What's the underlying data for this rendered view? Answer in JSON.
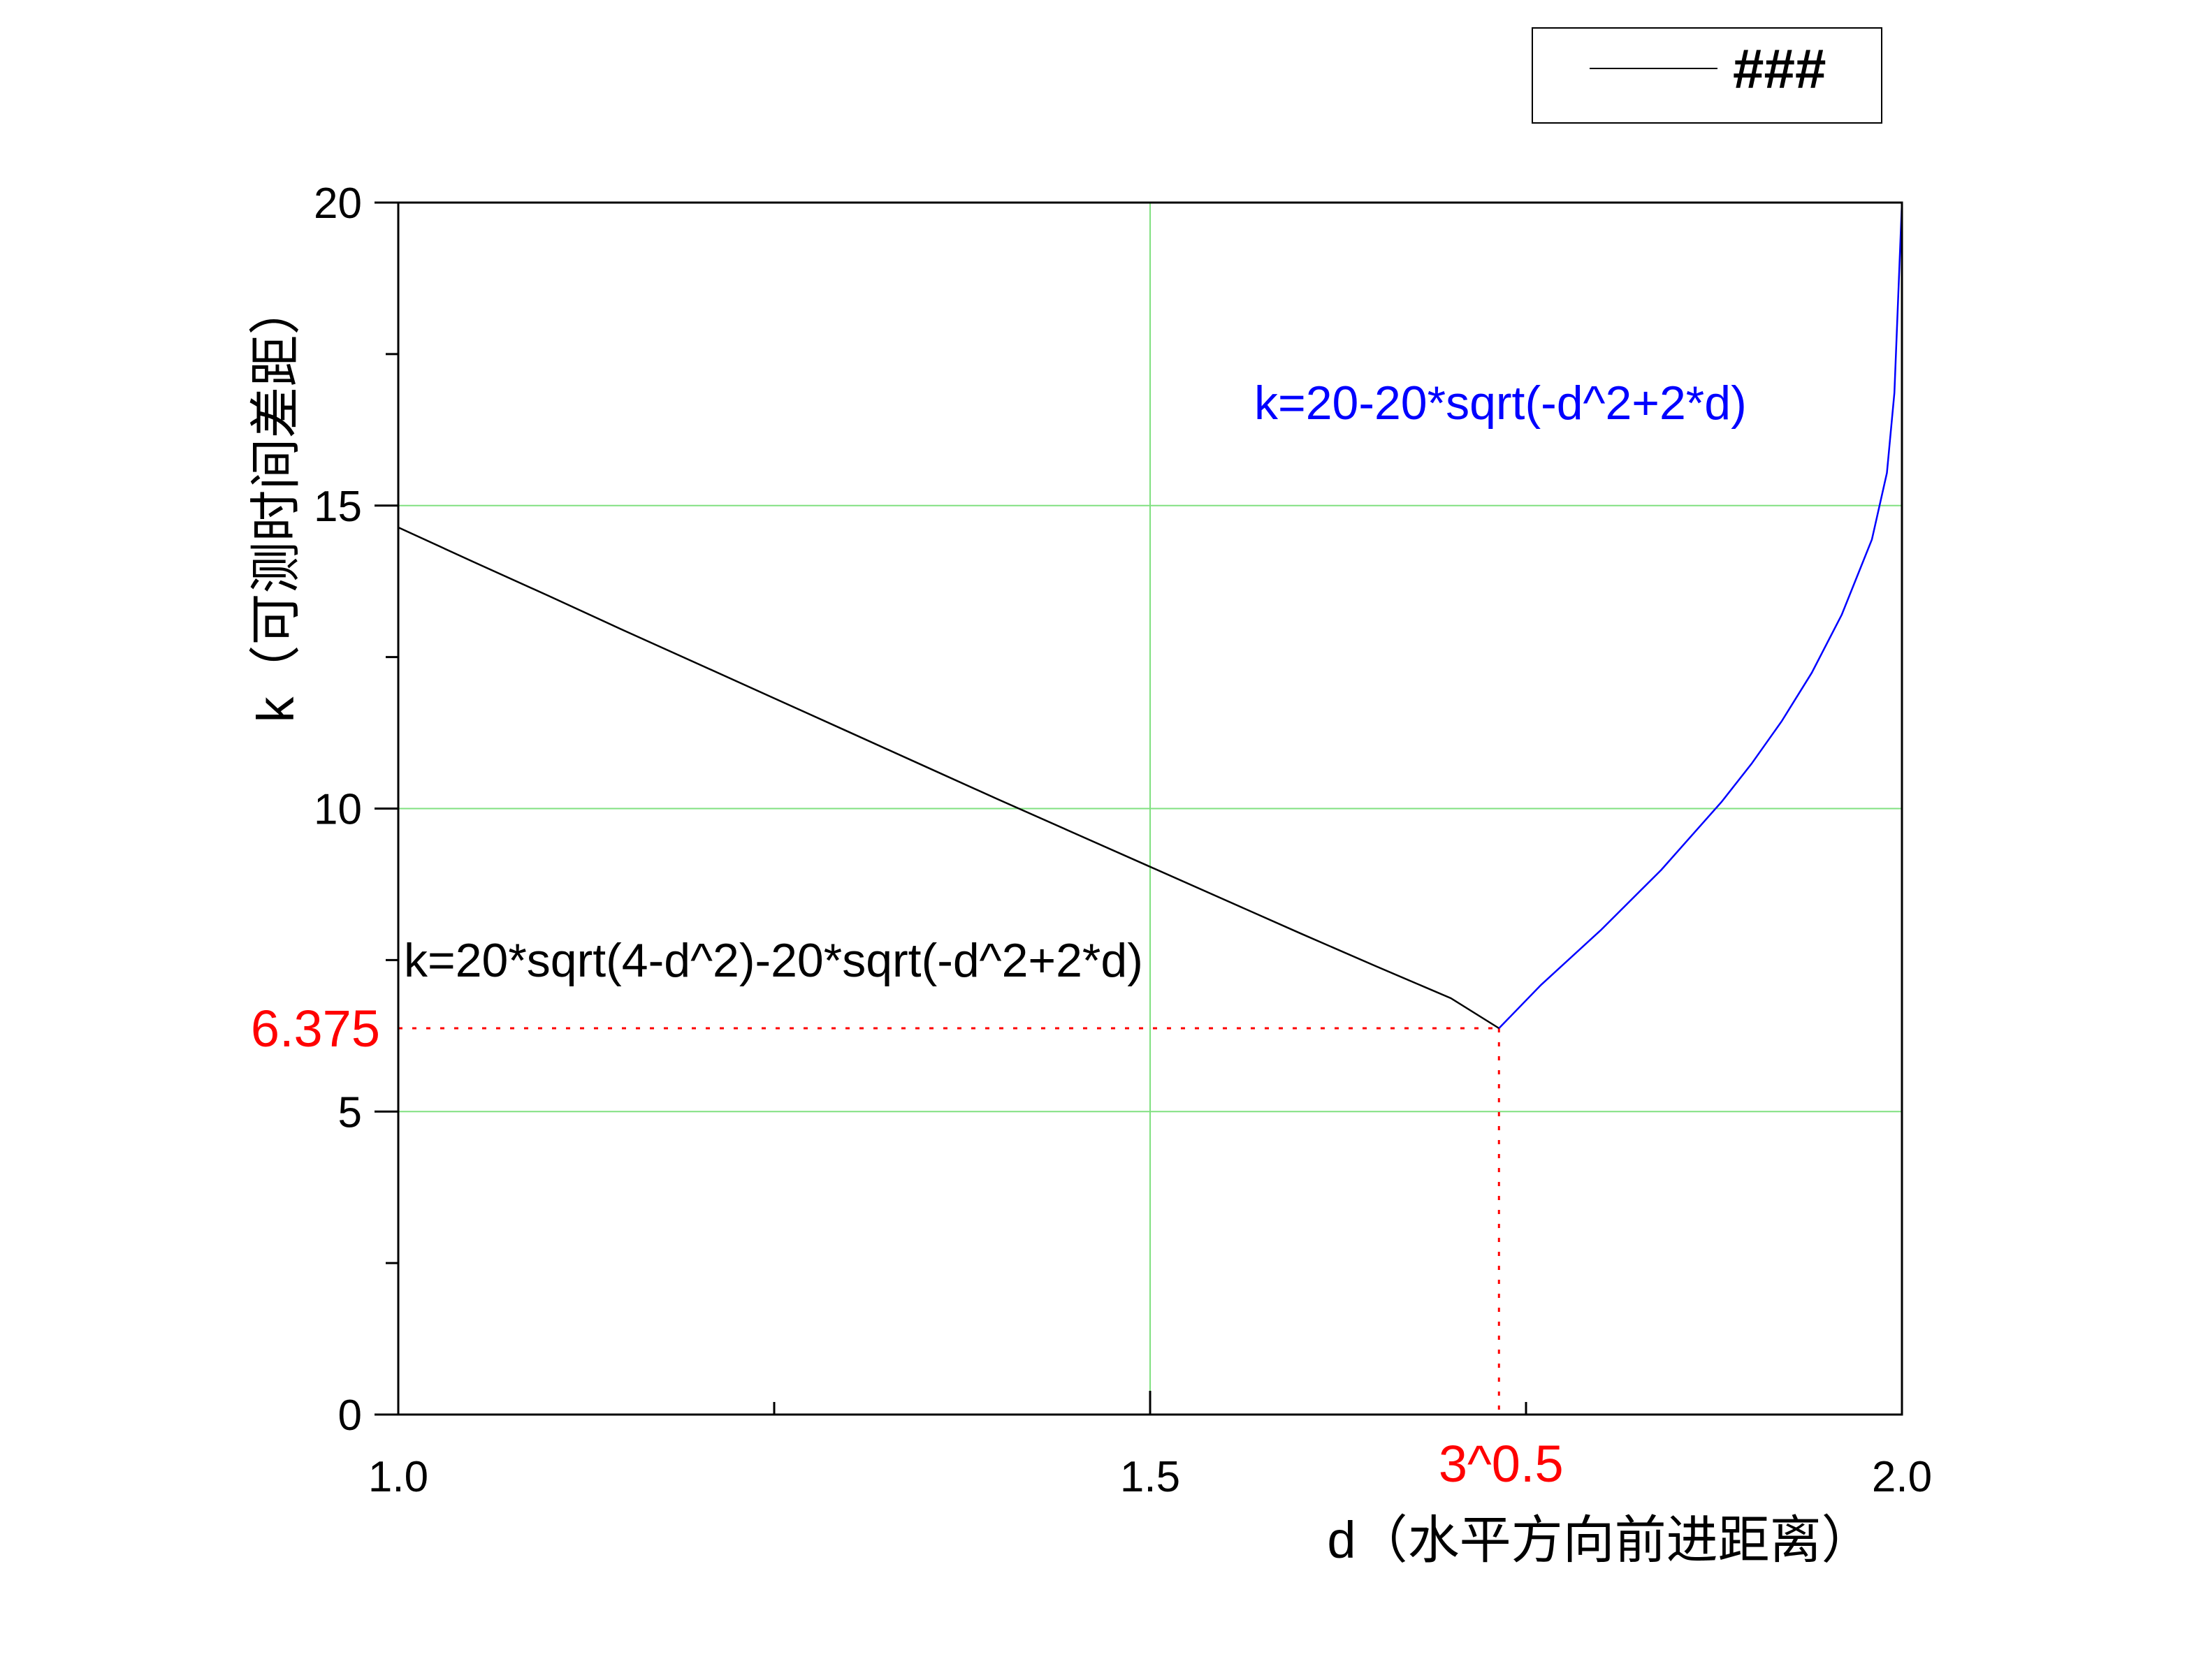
{
  "chart_data": {
    "type": "line",
    "xlabel": "d（水平方向前进距离）",
    "ylabel": "k（可测时间差距）",
    "xlim": [
      1.0,
      2.0
    ],
    "ylim": [
      0,
      20
    ],
    "x_ticks": [
      {
        "value": 1.0,
        "label": "1.0"
      },
      {
        "value": 1.5,
        "label": "1.5"
      },
      {
        "value": 2.0,
        "label": "2.0"
      }
    ],
    "x_minor_ticks": [
      1.25,
      1.75
    ],
    "y_ticks": [
      {
        "value": 0,
        "label": "0"
      },
      {
        "value": 5,
        "label": "5"
      },
      {
        "value": 10,
        "label": "10"
      },
      {
        "value": 15,
        "label": "15"
      },
      {
        "value": 20,
        "label": "20"
      }
    ],
    "y_minor_ticks": [
      2.5,
      7.5,
      12.5,
      17.5
    ],
    "grid": {
      "on": true,
      "color": "#80e080",
      "x": [
        1.5
      ],
      "y": [
        5,
        10,
        15
      ]
    },
    "legend": {
      "position": "top-right",
      "entries": [
        {
          "label": "###",
          "color": "#000000"
        }
      ]
    },
    "series": [
      {
        "label": "k=20*sqrt(4-d^2)-20*sqrt(-d^2+2*d)",
        "color": "#000000",
        "x": [
          1.0,
          1.05,
          1.1,
          1.15,
          1.2,
          1.25,
          1.3,
          1.35,
          1.4,
          1.45,
          1.5,
          1.55,
          1.6,
          1.65,
          1.7,
          1.732
        ],
        "y": [
          14.64,
          14.07,
          13.51,
          12.94,
          12.38,
          11.82,
          11.26,
          10.7,
          10.14,
          9.59,
          9.04,
          8.49,
          7.94,
          7.4,
          6.87,
          6.375
        ]
      },
      {
        "label": "k=20-20*sqrt(-d^2+2*d)",
        "color": "#0000ff",
        "x": [
          1.732,
          1.76,
          1.8,
          1.84,
          1.88,
          1.9,
          1.92,
          1.94,
          1.96,
          1.98,
          1.99,
          1.995,
          2.0
        ],
        "y": [
          6.375,
          7.09,
          8.0,
          8.99,
          10.11,
          10.74,
          11.44,
          12.24,
          13.2,
          14.44,
          15.54,
          16.86,
          20.0
        ]
      }
    ],
    "annotations": [
      {
        "text": "k=20-20*sqrt(-d^2+2*d)",
        "color": "#0000ff"
      },
      {
        "text": "k=20*sqrt(4-d^2)-20*sqrt(-d^2+2*d)",
        "color": "#000000"
      }
    ],
    "reference_lines": [
      {
        "axis": "y",
        "value": 6.375,
        "label": "6.375",
        "color": "#ff0000",
        "style": "dotted"
      },
      {
        "axis": "x",
        "value": 1.732,
        "label": "3^0.5",
        "color": "#ff0000",
        "style": "dotted"
      }
    ]
  }
}
